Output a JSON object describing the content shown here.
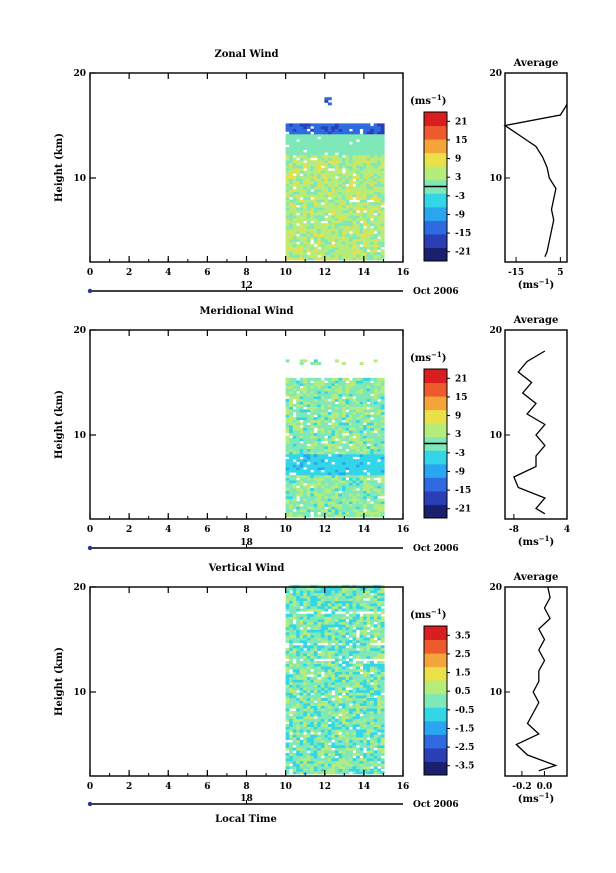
{
  "figure": {
    "xlabel": "Local Time",
    "date_label": "Oct 2006",
    "avg_title": "Average",
    "unit_label": "(ms",
    "unit_sup": "−1",
    "unit_close": ")"
  },
  "colormap": [
    "#1a1f6e",
    "#2a3fb5",
    "#2f6ae0",
    "#2aa6f0",
    "#33d6e6",
    "#7fe8b8",
    "#b6ec7a",
    "#e9e04a",
    "#f4a53a",
    "#ef5a2c",
    "#d81e1e"
  ],
  "chart_data": [
    {
      "type": "heatmap",
      "title": "Zonal Wind",
      "ylabel": "Height (km)",
      "xlim": [
        0,
        16
      ],
      "ylim": [
        2,
        20
      ],
      "x_ticks": [
        "0",
        "2",
        "4",
        "6",
        "8",
        "10",
        "12",
        "14",
        "16"
      ],
      "y_ticks": [
        "10",
        "20"
      ],
      "date_axis_tick": "12",
      "data_x_range": [
        10,
        15
      ],
      "colorbar": {
        "min": -24,
        "max": 24,
        "ticks": [
          "21",
          "15",
          "9",
          "3",
          "-3",
          "-9",
          "-15",
          "-21"
        ],
        "zero_line": 0
      },
      "average": {
        "title": "Average",
        "xlim": [
          -20,
          8
        ],
        "x_ticks": [
          "-15",
          "5"
        ],
        "heights": [
          2.5,
          3,
          4,
          5,
          6,
          7,
          8,
          9,
          10,
          11,
          12,
          13,
          14,
          15,
          16,
          17
        ],
        "values": [
          -2,
          -1,
          0,
          1,
          2,
          1,
          2,
          3,
          0,
          -1,
          -3,
          -6,
          -13,
          -20,
          5,
          8
        ]
      }
    },
    {
      "type": "heatmap",
      "title": "Meridional Wind",
      "ylabel": "Height (km)",
      "xlim": [
        0,
        16
      ],
      "ylim": [
        2,
        20
      ],
      "x_ticks": [
        "0",
        "2",
        "4",
        "6",
        "8",
        "10",
        "12",
        "14",
        "16"
      ],
      "y_ticks": [
        "10",
        "20"
      ],
      "date_axis_tick": "18",
      "data_x_range": [
        10,
        15
      ],
      "colorbar": {
        "min": -24,
        "max": 24,
        "ticks": [
          "21",
          "15",
          "9",
          "3",
          "-3",
          "-9",
          "-15",
          "-21"
        ],
        "zero_line": 0
      },
      "average": {
        "title": "Average",
        "xlim": [
          -10,
          4
        ],
        "x_ticks": [
          "-8",
          "4"
        ],
        "heights": [
          2.5,
          3,
          4,
          5,
          6,
          7,
          8,
          9,
          10,
          11,
          12,
          13,
          14,
          15,
          16,
          17,
          18
        ],
        "values": [
          -1,
          -3,
          -1,
          -7,
          -8,
          -3,
          -3,
          -1,
          -3,
          -1,
          -5,
          -3,
          -6,
          -4,
          -7,
          -5,
          -1
        ]
      }
    },
    {
      "type": "heatmap",
      "title": "Vertical Wind",
      "ylabel": "Height (km)",
      "xlim": [
        0,
        16
      ],
      "ylim": [
        2,
        20
      ],
      "x_ticks": [
        "0",
        "2",
        "4",
        "6",
        "8",
        "10",
        "12",
        "14",
        "16"
      ],
      "y_ticks": [
        "10",
        "20"
      ],
      "date_axis_tick": "18",
      "data_x_range": [
        10,
        15
      ],
      "colorbar": {
        "min": -4,
        "max": 4,
        "ticks": [
          "3.5",
          "2.5",
          "1.5",
          "0.5",
          "-0.5",
          "-1.5",
          "-2.5",
          "-3.5"
        ],
        "zero_line": null
      },
      "average": {
        "title": "Average",
        "xlim": [
          -0.35,
          0.2
        ],
        "x_ticks": [
          "-0.2",
          "0.0"
        ],
        "heights": [
          2.5,
          3,
          4,
          5,
          6,
          7,
          8,
          9,
          10,
          11,
          12,
          13,
          14,
          15,
          16,
          17,
          18,
          19,
          20
        ],
        "values": [
          -0.05,
          0.1,
          -0.15,
          -0.25,
          -0.05,
          -0.15,
          -0.1,
          -0.05,
          -0.1,
          -0.05,
          -0.05,
          0.0,
          -0.05,
          0.0,
          -0.05,
          0.05,
          0.0,
          0.05,
          0.03
        ]
      }
    }
  ]
}
